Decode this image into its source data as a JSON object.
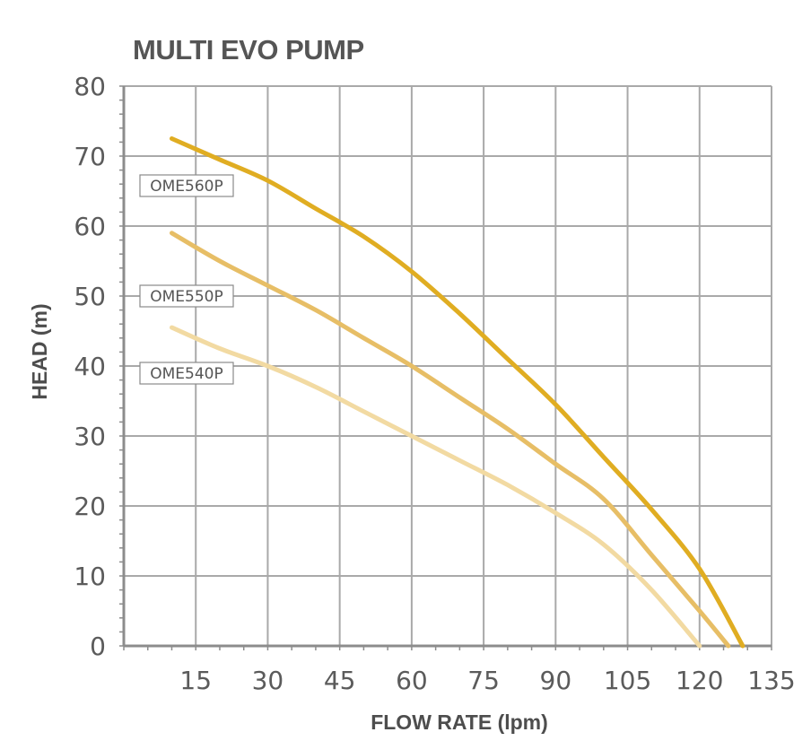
{
  "chart_data": {
    "type": "line",
    "title": "MULTI EVO PUMP",
    "xlabel": "FLOW RATE (lpm)",
    "ylabel": "HEAD (m)",
    "xlim": [
      0,
      135
    ],
    "ylim": [
      0,
      80
    ],
    "x_ticks": [
      15,
      30,
      45,
      60,
      75,
      90,
      105,
      120,
      135
    ],
    "y_ticks": [
      0,
      10,
      20,
      30,
      40,
      50,
      60,
      70,
      80
    ],
    "grid": true,
    "series": [
      {
        "name": "OME560P",
        "color": "#e0ad22",
        "x": [
          10,
          20,
          30,
          40,
          50,
          60,
          70,
          80,
          90,
          100,
          110,
          120,
          129
        ],
        "y": [
          72.5,
          69.5,
          66.5,
          62.5,
          58.5,
          53.5,
          47.5,
          41,
          34.5,
          27,
          19.5,
          11,
          0
        ]
      },
      {
        "name": "OME550P",
        "color": "#e7be66",
        "x": [
          10,
          20,
          30,
          40,
          50,
          60,
          70,
          80,
          90,
          100,
          110,
          120,
          126
        ],
        "y": [
          59,
          55,
          51.5,
          48,
          44,
          40,
          35.5,
          31,
          26,
          21,
          13,
          5,
          0
        ]
      },
      {
        "name": "OME540P",
        "color": "#f2daa2",
        "x": [
          10,
          20,
          30,
          40,
          50,
          60,
          70,
          80,
          90,
          100,
          110,
          120
        ],
        "y": [
          45.5,
          42.5,
          40,
          37,
          33.5,
          30,
          26.5,
          23,
          19,
          14.5,
          8,
          0
        ]
      }
    ]
  }
}
